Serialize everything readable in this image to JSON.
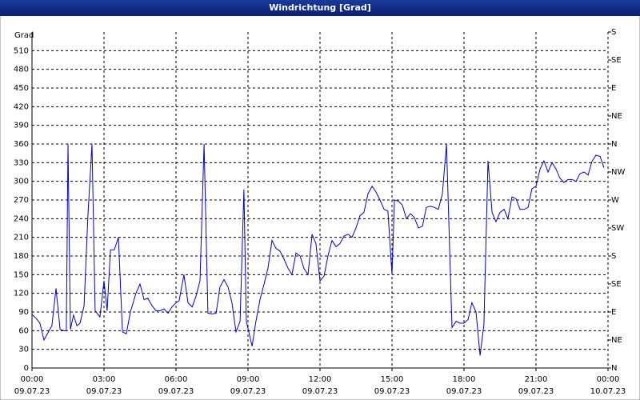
{
  "chart_data": {
    "type": "line",
    "title": "Windrichtung [Grad]",
    "y_label": "Grad",
    "xlim": [
      0,
      24
    ],
    "xticks": [
      {
        "value": 0,
        "label": "00:00"
      },
      {
        "value": 3,
        "label": "03:00"
      },
      {
        "value": 6,
        "label": "06:00"
      },
      {
        "value": 9,
        "label": "09:00"
      },
      {
        "value": 12,
        "label": "12:00"
      },
      {
        "value": 15,
        "label": "15:00"
      },
      {
        "value": 18,
        "label": "18:00"
      },
      {
        "value": 21,
        "label": "21:00"
      },
      {
        "value": 24,
        "label": "00:00"
      }
    ],
    "xtick_dates": [
      "09.07.23",
      "09.07.23",
      "09.07.23",
      "09.07.23",
      "09.07.23",
      "09.07.23",
      "09.07.23",
      "09.07.23",
      "10.07.23"
    ],
    "ylim": [
      0,
      540
    ],
    "yticks": [
      0,
      30,
      60,
      90,
      120,
      150,
      180,
      210,
      240,
      270,
      300,
      330,
      360,
      390,
      420,
      450,
      480,
      510
    ],
    "y2lim": [
      0,
      540
    ],
    "y2ticks": [
      {
        "value": 0,
        "label": "N"
      },
      {
        "value": 45,
        "label": "NE"
      },
      {
        "value": 90,
        "label": "E"
      },
      {
        "value": 135,
        "label": "SE"
      },
      {
        "value": 180,
        "label": "S"
      },
      {
        "value": 225,
        "label": "SW"
      },
      {
        "value": 270,
        "label": "W"
      },
      {
        "value": 315,
        "label": "NW"
      },
      {
        "value": 360,
        "label": "N"
      },
      {
        "value": 405,
        "label": "NE"
      },
      {
        "value": 450,
        "label": "E"
      },
      {
        "value": 495,
        "label": "SE"
      },
      {
        "value": 540,
        "label": "S"
      }
    ],
    "grid": true,
    "series": [
      {
        "color": "#0000cc",
        "x": [
          0,
          0.17,
          0.33,
          0.5,
          0.67,
          0.83,
          1,
          1.17,
          1.33,
          1.43,
          1.5,
          1.6,
          1.73,
          1.87,
          2,
          2.17,
          2.33,
          2.5,
          2.63,
          2.83,
          3,
          3.13,
          3.27,
          3.43,
          3.6,
          3.77,
          3.93,
          4.1,
          4.33,
          4.5,
          4.67,
          4.83,
          5,
          5.17,
          5.33,
          5.5,
          5.67,
          5.83,
          6,
          6.13,
          6.33,
          6.5,
          6.67,
          6.83,
          7,
          7.17,
          7.33,
          7.5,
          7.67,
          7.83,
          8,
          8.17,
          8.33,
          8.5,
          8.67,
          8.83,
          8.93,
          9.17,
          9.33,
          9.5,
          9.67,
          9.83,
          10,
          10.17,
          10.33,
          10.5,
          10.67,
          10.83,
          11,
          11.17,
          11.33,
          11.5,
          11.67,
          11.83,
          12,
          12.17,
          12.33,
          12.5,
          12.67,
          12.83,
          13,
          13.17,
          13.33,
          13.5,
          13.67,
          13.83,
          14,
          14.17,
          14.33,
          14.5,
          14.67,
          14.83,
          15,
          15.1,
          15.27,
          15.43,
          15.6,
          15.77,
          15.93,
          16.1,
          16.27,
          16.43,
          16.6,
          16.77,
          16.93,
          17.1,
          17.27,
          17.5,
          17.67,
          17.83,
          18,
          18.17,
          18.33,
          18.5,
          18.67,
          18.83,
          19,
          19.17,
          19.33,
          19.5,
          19.67,
          19.83,
          20,
          20.17,
          20.33,
          20.5,
          20.67,
          20.83,
          21,
          21.17,
          21.33,
          21.5,
          21.67,
          21.83,
          22,
          22.17,
          22.33,
          22.5,
          22.67,
          22.83,
          23,
          23.17,
          23.33,
          23.5,
          23.67,
          23.83
        ],
        "values": [
          86,
          80,
          72,
          45,
          57,
          68,
          128,
          62,
          60,
          60,
          360,
          62,
          85,
          68,
          72,
          100,
          245,
          360,
          92,
          82,
          140,
          92,
          190,
          190,
          210,
          58,
          55,
          90,
          120,
          135,
          110,
          112,
          100,
          92,
          92,
          95,
          88,
          98,
          105,
          108,
          150,
          105,
          98,
          115,
          140,
          360,
          88,
          87,
          88,
          130,
          142,
          130,
          105,
          58,
          75,
          287,
          75,
          35,
          75,
          110,
          135,
          160,
          205,
          192,
          188,
          175,
          160,
          150,
          185,
          180,
          160,
          150,
          215,
          200,
          140,
          148,
          180,
          205,
          195,
          200,
          212,
          215,
          210,
          225,
          245,
          250,
          280,
          292,
          283,
          270,
          255,
          252,
          150,
          270,
          268,
          262,
          240,
          248,
          242,
          225,
          228,
          258,
          260,
          258,
          255,
          280,
          360,
          65,
          75,
          72,
          72,
          78,
          105,
          90,
          20,
          70,
          333,
          250,
          235,
          250,
          255,
          240,
          275,
          272,
          255,
          255,
          258,
          288,
          292,
          320,
          333,
          315,
          330,
          320,
          305,
          298,
          303,
          303,
          300,
          312,
          315,
          310,
          332,
          342,
          340,
          322
        ]
      }
    ]
  }
}
